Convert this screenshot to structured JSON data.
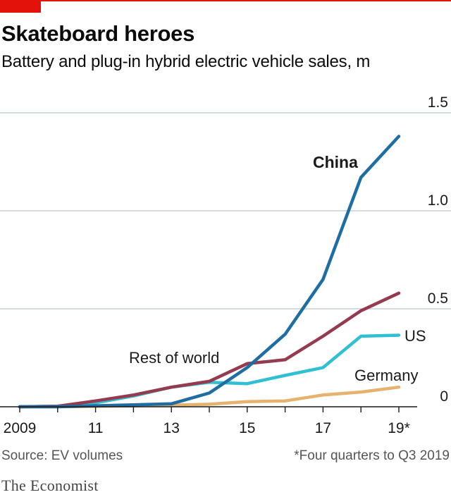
{
  "header": {
    "title": "Skateboard heroes",
    "subtitle": "Battery and plug-in hybrid electric vehicle sales, m"
  },
  "footer": {
    "source": "Source: EV volumes",
    "footnote": "*Four quarters to Q3 2019",
    "brand": "The Economist"
  },
  "colors": {
    "accent": "#e3120b",
    "china": "#1f6ea3",
    "rest_of_world": "#963b4f",
    "us": "#30bfd3",
    "germany": "#e5b36e",
    "grid": "#b7c6cf",
    "axis": "#1a1a1a"
  },
  "chart_data": {
    "type": "line",
    "x": [
      2009,
      2010,
      2011,
      2012,
      2013,
      2014,
      2015,
      2016,
      2017,
      2018,
      2019
    ],
    "x_tick_values": [
      2009,
      2011,
      2013,
      2015,
      2017,
      2019
    ],
    "x_tick_labels": [
      "2009",
      "11",
      "13",
      "15",
      "17",
      "19*"
    ],
    "y_tick_values": [
      0,
      0.5,
      1.0,
      1.5
    ],
    "y_tick_labels": [
      "0",
      "0.5",
      "1.0",
      "1.5"
    ],
    "ylim": [
      0,
      1.5
    ],
    "grid": true,
    "series": [
      {
        "name": "China",
        "color_key": "china",
        "values": [
          0.0,
          0.0,
          0.005,
          0.01,
          0.015,
          0.07,
          0.2,
          0.37,
          0.65,
          1.17,
          1.38
        ]
      },
      {
        "name": "Rest of world",
        "color_key": "rest_of_world",
        "values": [
          0.0,
          0.003,
          0.03,
          0.06,
          0.1,
          0.13,
          0.22,
          0.24,
          0.36,
          0.49,
          0.58
        ]
      },
      {
        "name": "US",
        "color_key": "us",
        "values": [
          0.0,
          0.003,
          0.02,
          0.055,
          0.1,
          0.125,
          0.118,
          0.16,
          0.2,
          0.36,
          0.365
        ]
      },
      {
        "name": "Germany",
        "color_key": "germany",
        "values": [
          0.0,
          0.0,
          0.002,
          0.005,
          0.008,
          0.013,
          0.026,
          0.03,
          0.06,
          0.075,
          0.1
        ]
      }
    ]
  }
}
